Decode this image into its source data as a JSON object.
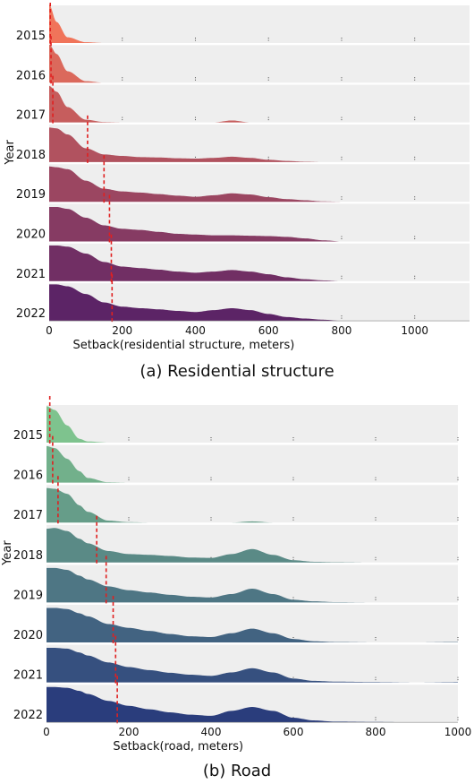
{
  "captions": {
    "a": "(a) Residential structure",
    "b": "(b) Road"
  },
  "chart_data": [
    {
      "type": "area",
      "subtype": "ridgeline",
      "xlabel": "Setback(residential structure, meters)",
      "ylabel": "Year",
      "xlim": [
        0,
        1150
      ],
      "xticks": [
        0,
        200,
        400,
        600,
        800,
        1000
      ],
      "grid": false,
      "palette": {
        "start": "#f0745a",
        "end": "#5c2466",
        "panel_bg": "#eeeeee",
        "median_line": "#e02020"
      },
      "density_x": [
        0,
        20,
        50,
        100,
        150,
        200,
        250,
        300,
        350,
        400,
        450,
        500,
        550,
        600,
        650,
        700,
        750,
        800
      ],
      "series": [
        {
          "name": "2015",
          "median": 3,
          "density": [
            1.0,
            0.55,
            0.15,
            0.02,
            0,
            0,
            0,
            0,
            0,
            0,
            0,
            0,
            0,
            0,
            0,
            0,
            0,
            0
          ]
        },
        {
          "name": "2016",
          "median": 5,
          "density": [
            1.0,
            0.75,
            0.3,
            0.04,
            0,
            0,
            0,
            0,
            0,
            0,
            0,
            0,
            0,
            0,
            0,
            0,
            0,
            0
          ]
        },
        {
          "name": "2017",
          "median": 10,
          "density": [
            0.95,
            0.8,
            0.4,
            0.07,
            0.01,
            0,
            0,
            0,
            0,
            0,
            0,
            0.05,
            0,
            0,
            0,
            0,
            0,
            0
          ]
        },
        {
          "name": "2018",
          "median": 105,
          "density": [
            0.9,
            0.88,
            0.72,
            0.36,
            0.2,
            0.16,
            0.13,
            0.12,
            0.1,
            0.09,
            0.11,
            0.14,
            0.11,
            0.06,
            0.03,
            0.01,
            0,
            0
          ]
        },
        {
          "name": "2019",
          "median": 150,
          "density": [
            0.92,
            0.9,
            0.85,
            0.55,
            0.34,
            0.27,
            0.24,
            0.2,
            0.16,
            0.13,
            0.17,
            0.22,
            0.19,
            0.12,
            0.07,
            0.04,
            0.01,
            0
          ]
        },
        {
          "name": "2020",
          "median": 165,
          "density": [
            0.9,
            0.9,
            0.85,
            0.62,
            0.42,
            0.33,
            0.3,
            0.25,
            0.2,
            0.18,
            0.16,
            0.16,
            0.15,
            0.14,
            0.12,
            0.08,
            0.03,
            0
          ]
        },
        {
          "name": "2021",
          "median": 170,
          "density": [
            0.93,
            0.93,
            0.9,
            0.72,
            0.5,
            0.38,
            0.34,
            0.3,
            0.25,
            0.22,
            0.25,
            0.29,
            0.25,
            0.18,
            0.1,
            0.05,
            0.02,
            0
          ]
        },
        {
          "name": "2022",
          "median": 172,
          "density": [
            0.95,
            0.95,
            0.9,
            0.7,
            0.48,
            0.37,
            0.33,
            0.3,
            0.26,
            0.23,
            0.28,
            0.33,
            0.28,
            0.18,
            0.1,
            0.06,
            0.03,
            0
          ]
        }
      ]
    },
    {
      "type": "area",
      "subtype": "ridgeline",
      "xlabel": "Setback(road, meters)",
      "ylabel": "Year",
      "xlim": [
        0,
        1000
      ],
      "xticks": [
        0,
        200,
        400,
        600,
        800,
        1000
      ],
      "grid": false,
      "palette": {
        "start": "#7ec38e",
        "end": "#2a3d7c",
        "panel_bg": "#eeeeee",
        "median_line": "#e02020"
      },
      "density_x": [
        0,
        20,
        50,
        80,
        100,
        150,
        200,
        250,
        300,
        350,
        400,
        450,
        500,
        550,
        600,
        650,
        700,
        800,
        900,
        1000
      ],
      "series": [
        {
          "name": "2015",
          "median": 8,
          "density": [
            0.95,
            0.85,
            0.45,
            0.1,
            0.03,
            0,
            0,
            0,
            0,
            0,
            0,
            0,
            0,
            0,
            0,
            0,
            0,
            0,
            0,
            0
          ]
        },
        {
          "name": "2016",
          "median": 15,
          "density": [
            0.95,
            0.9,
            0.62,
            0.3,
            0.12,
            0.01,
            0,
            0,
            0,
            0,
            0,
            0,
            0,
            0,
            0,
            0,
            0,
            0,
            0,
            0
          ]
        },
        {
          "name": "2017",
          "median": 28,
          "density": [
            0.9,
            0.88,
            0.75,
            0.45,
            0.28,
            0.05,
            0.01,
            0,
            0,
            0,
            0,
            0,
            0.03,
            0,
            0,
            0,
            0,
            0,
            0,
            0
          ]
        },
        {
          "name": "2018",
          "median": 122,
          "density": [
            0.88,
            0.9,
            0.82,
            0.62,
            0.5,
            0.3,
            0.22,
            0.2,
            0.17,
            0.13,
            0.12,
            0.22,
            0.35,
            0.2,
            0.06,
            0.02,
            0.01,
            0,
            0,
            0
          ]
        },
        {
          "name": "2019",
          "median": 145,
          "density": [
            0.9,
            0.9,
            0.85,
            0.7,
            0.6,
            0.42,
            0.32,
            0.26,
            0.2,
            0.15,
            0.13,
            0.22,
            0.36,
            0.22,
            0.07,
            0.03,
            0.01,
            0,
            0,
            0
          ]
        },
        {
          "name": "2020",
          "median": 162,
          "density": [
            0.9,
            0.9,
            0.87,
            0.76,
            0.68,
            0.48,
            0.38,
            0.3,
            0.22,
            0.16,
            0.14,
            0.24,
            0.36,
            0.24,
            0.09,
            0.03,
            0.01,
            0,
            0,
            0.01
          ]
        },
        {
          "name": "2021",
          "median": 168,
          "density": [
            0.9,
            0.9,
            0.88,
            0.78,
            0.7,
            0.52,
            0.4,
            0.32,
            0.25,
            0.2,
            0.17,
            0.26,
            0.37,
            0.26,
            0.1,
            0.04,
            0.02,
            0.01,
            0,
            0.01
          ]
        },
        {
          "name": "2022",
          "median": 172,
          "density": [
            0.92,
            0.92,
            0.9,
            0.82,
            0.74,
            0.56,
            0.43,
            0.34,
            0.26,
            0.2,
            0.17,
            0.3,
            0.4,
            0.3,
            0.12,
            0.05,
            0.02,
            0.01,
            0,
            0
          ]
        }
      ]
    }
  ]
}
